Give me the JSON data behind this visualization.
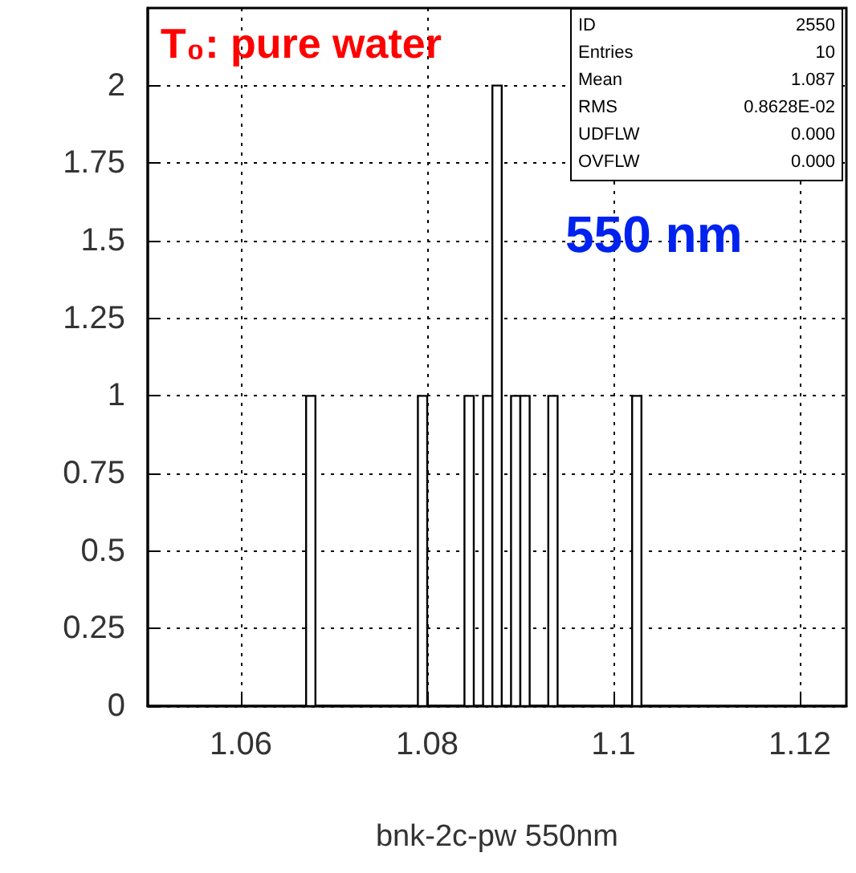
{
  "chart_data": {
    "type": "histogram",
    "xlabel": "bnk-2c-pw 550nm",
    "bins": [
      1.067,
      1.068,
      1.069,
      1.07,
      1.071,
      1.072,
      1.073,
      1.074,
      1.075,
      1.076,
      1.077,
      1.078,
      1.079,
      1.08,
      1.081,
      1.082,
      1.083,
      1.084,
      1.085,
      1.086,
      1.087,
      1.088,
      1.089,
      1.09,
      1.091,
      1.092,
      1.093,
      1.094,
      1.095,
      1.096,
      1.097,
      1.098,
      1.099,
      1.1,
      1.101,
      1.102,
      1.103
    ],
    "values": [
      1,
      0,
      0,
      0,
      0,
      0,
      0,
      0,
      0,
      0,
      0,
      0,
      1,
      0,
      0,
      0,
      0,
      1,
      0,
      1,
      2,
      0,
      1,
      1,
      0,
      0,
      1,
      0,
      0,
      0,
      0,
      0,
      0,
      0,
      0,
      1
    ],
    "color": "#000000",
    "xlim": [
      1.05,
      1.125
    ],
    "xticks": [
      1.06,
      1.08,
      1.1,
      1.12
    ],
    "ylim": [
      0,
      2.25
    ],
    "yticks": [
      0,
      0.25,
      0.5,
      0.75,
      1,
      1.25,
      1.5,
      1.75,
      2
    ],
    "grid": true,
    "annotations": [
      "T₀: pure water",
      "550 nm",
      "ID 2550",
      "Entries 10",
      "Mean 1.087",
      "RMS 0.8628E-02",
      "UDFLW 0.000",
      "OVFLW 0.000"
    ]
  }
}
